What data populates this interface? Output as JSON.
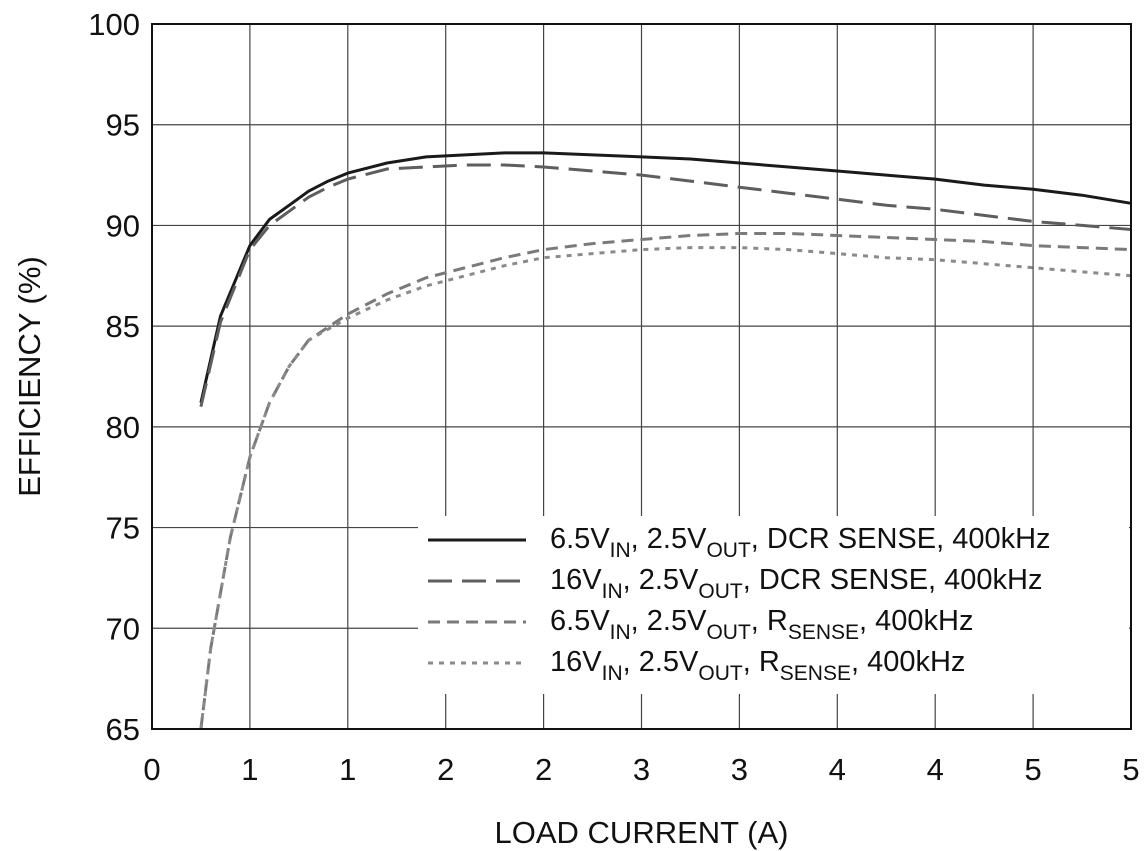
{
  "chart_data": {
    "type": "line",
    "title": "",
    "xlabel": "LOAD CURRENT (A)",
    "ylabel": "EFFICIENCY (%)",
    "xlim": [
      0,
      5
    ],
    "ylim": [
      65,
      100
    ],
    "x_tick_values": [
      0,
      0.5,
      1,
      1.5,
      2,
      2.5,
      3,
      3.5,
      4,
      4.5,
      5
    ],
    "x_tick_labels": [
      "0",
      "1",
      "1",
      "2",
      "2",
      "3",
      "3",
      "4",
      "4",
      "5",
      "5"
    ],
    "y_ticks": [
      65,
      70,
      75,
      80,
      85,
      90,
      95,
      100
    ],
    "grid": true,
    "legend_position": "bottom-right",
    "series": [
      {
        "name": "6.5VIN, 2.5VOUT, DCR SENSE, 400kHz",
        "legend": [
          [
            "6.5V",
            ""
          ],
          [
            "IN",
            "sub"
          ],
          [
            ", 2.5V",
            ""
          ],
          [
            "OUT",
            "sub"
          ],
          [
            ", DCR SENSE, 400kHz",
            ""
          ]
        ],
        "color": "#1a1a1a",
        "dash": "solid",
        "x": [
          0.25,
          0.35,
          0.5,
          0.6,
          0.7,
          0.8,
          0.9,
          1.0,
          1.2,
          1.4,
          1.6,
          1.8,
          2.0,
          2.25,
          2.5,
          2.75,
          3.0,
          3.25,
          3.5,
          3.75,
          4.0,
          4.25,
          4.5,
          4.75,
          5.0
        ],
        "y": [
          81.2,
          85.5,
          89.0,
          90.3,
          91.0,
          91.7,
          92.2,
          92.6,
          93.1,
          93.4,
          93.5,
          93.6,
          93.6,
          93.5,
          93.4,
          93.3,
          93.1,
          92.9,
          92.7,
          92.5,
          92.3,
          92.0,
          91.8,
          91.5,
          91.1
        ]
      },
      {
        "name": "16VIN, 2.5VOUT, DCR SENSE, 400kHz",
        "legend": [
          [
            "16V",
            ""
          ],
          [
            "IN",
            "sub"
          ],
          [
            ", 2.5V",
            ""
          ],
          [
            "OUT",
            "sub"
          ],
          [
            ", DCR SENSE, 400kHz",
            ""
          ]
        ],
        "color": "#5e5e5e",
        "dash": "solid",
        "x": [
          0.25,
          0.35,
          0.5,
          0.6,
          0.7,
          0.8,
          0.9,
          1.0,
          1.2,
          1.4,
          1.6,
          1.8,
          2.0,
          2.25,
          2.5,
          2.75,
          3.0,
          3.25,
          3.5,
          3.75,
          4.0,
          4.25,
          4.5,
          4.75,
          5.0
        ],
        "y": [
          81.0,
          85.2,
          88.8,
          90.0,
          90.7,
          91.4,
          91.9,
          92.3,
          92.8,
          92.9,
          93.0,
          93.0,
          92.9,
          92.7,
          92.5,
          92.2,
          91.9,
          91.6,
          91.3,
          91.0,
          90.8,
          90.5,
          90.2,
          90.0,
          89.8
        ]
      },
      {
        "name": "6.5VIN, 2.5VOUT, RSENSE, 400kHz",
        "legend": [
          [
            "6.5V",
            ""
          ],
          [
            "IN",
            "sub"
          ],
          [
            ", 2.5V",
            ""
          ],
          [
            "OUT",
            "sub"
          ],
          [
            ", R",
            ""
          ],
          [
            "SENSE",
            "sub"
          ],
          [
            ", 400kHz",
            ""
          ]
        ],
        "color": "#7a7a7a",
        "dash": "solid",
        "x": [
          0.25,
          0.3,
          0.4,
          0.5,
          0.6,
          0.7,
          0.8,
          1.0,
          1.2,
          1.4,
          1.6,
          1.8,
          2.0,
          2.25,
          2.5,
          2.75,
          3.0,
          3.25,
          3.5,
          3.75,
          4.0,
          4.25,
          4.5,
          4.75,
          5.0
        ],
        "y": [
          65.0,
          69.0,
          74.5,
          78.5,
          81.2,
          83.0,
          84.3,
          85.6,
          86.6,
          87.4,
          87.9,
          88.4,
          88.8,
          89.1,
          89.3,
          89.5,
          89.6,
          89.6,
          89.5,
          89.4,
          89.3,
          89.2,
          89.0,
          88.9,
          88.8
        ]
      },
      {
        "name": "16VIN, 2.5VOUT, RSENSE, 400kHz",
        "legend": [
          [
            "16V",
            ""
          ],
          [
            "IN",
            "sub"
          ],
          [
            ", 2.5V",
            ""
          ],
          [
            "OUT",
            "sub"
          ],
          [
            ", R",
            ""
          ],
          [
            "SENSE",
            "sub"
          ],
          [
            ", 400kHz",
            ""
          ]
        ],
        "color": "#8a8a8a",
        "dash": "dotted",
        "x": [
          0.25,
          0.3,
          0.4,
          0.5,
          0.6,
          0.7,
          0.8,
          1.0,
          1.2,
          1.4,
          1.6,
          1.8,
          2.0,
          2.25,
          2.5,
          2.75,
          3.0,
          3.25,
          3.5,
          3.75,
          4.0,
          4.25,
          4.5,
          4.75,
          5.0
        ],
        "y": [
          65.0,
          69.0,
          74.5,
          78.5,
          81.2,
          83.0,
          84.3,
          85.4,
          86.3,
          87.0,
          87.5,
          88.0,
          88.4,
          88.6,
          88.8,
          88.9,
          88.9,
          88.8,
          88.6,
          88.4,
          88.3,
          88.1,
          87.9,
          87.7,
          87.5
        ]
      }
    ]
  }
}
